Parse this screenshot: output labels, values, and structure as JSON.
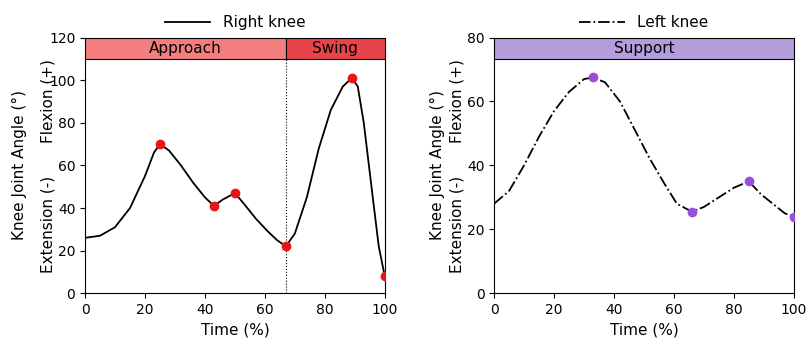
{
  "chart_data": [
    {
      "type": "line",
      "x_label": "Time (%)",
      "y_label": "Knee Joint Angle (°)",
      "y_annotations": {
        "negative": "Extension (-)",
        "positive": "Flexion (+)"
      },
      "xlim": [
        0,
        100
      ],
      "xticks": [
        0,
        20,
        40,
        60,
        80,
        100
      ],
      "ylim": [
        0,
        120
      ],
      "yticks": [
        0,
        20,
        40,
        60,
        80,
        100,
        120
      ],
      "grid": false,
      "legend": "upper center",
      "phases": [
        {
          "name": "Approach",
          "start": 0,
          "end": 67,
          "color": "#f47e7e"
        },
        {
          "name": "Swing",
          "start": 67,
          "end": 100,
          "color": "#e8434b"
        }
      ],
      "series": [
        {
          "name": "Right knee",
          "color": "#000000",
          "line_style": "solid",
          "x": [
            0,
            5,
            10,
            15,
            20,
            23,
            25,
            28,
            32,
            36,
            40,
            43,
            46,
            50,
            53,
            57,
            61,
            64,
            67,
            70,
            74,
            78,
            82,
            86,
            89,
            91,
            93,
            96,
            98,
            100
          ],
          "values": [
            26,
            27,
            31,
            40,
            55,
            66,
            70,
            67,
            60,
            52,
            45,
            41,
            44,
            47,
            42,
            35,
            29,
            25,
            22,
            28,
            45,
            68,
            86,
            97,
            101,
            97,
            80,
            45,
            22,
            8
          ],
          "key_points": {
            "x": [
              25,
              43,
              50,
              67,
              89,
              100
            ],
            "values": [
              70,
              41,
              47,
              22,
              101,
              8
            ],
            "color": "#e8141b",
            "marker": "circle"
          }
        }
      ]
    },
    {
      "type": "line",
      "x_label": "Time (%)",
      "y_label": "Knee Joint Angle (°)",
      "y_annotations": {
        "negative": "Extension (-)",
        "positive": "Flexion (+)"
      },
      "xlim": [
        0,
        100
      ],
      "xticks": [
        0,
        20,
        40,
        60,
        80,
        100
      ],
      "ylim": [
        0,
        80
      ],
      "yticks": [
        0,
        20,
        40,
        60,
        80
      ],
      "grid": false,
      "legend": "upper center",
      "phases": [
        {
          "name": "Support",
          "start": 0,
          "end": 100,
          "color": "#b39ddb"
        }
      ],
      "series": [
        {
          "name": "Left knee",
          "color": "#000000",
          "line_style": "dashdot",
          "x": [
            0,
            5,
            10,
            15,
            20,
            25,
            30,
            33,
            37,
            42,
            47,
            52,
            57,
            61,
            66,
            70,
            75,
            80,
            85,
            89,
            93,
            97,
            100
          ],
          "values": [
            28,
            32,
            40,
            49,
            57,
            63,
            67,
            67.5,
            66,
            60,
            51,
            42,
            34,
            28,
            25.5,
            27,
            30,
            33,
            35,
            31,
            28,
            25,
            24
          ],
          "key_points": {
            "x": [
              33,
              66,
              85,
              100
            ],
            "values": [
              67.5,
              25.5,
              35,
              24
            ],
            "color": "#9b4fd6",
            "marker": "circle"
          }
        }
      ]
    }
  ]
}
